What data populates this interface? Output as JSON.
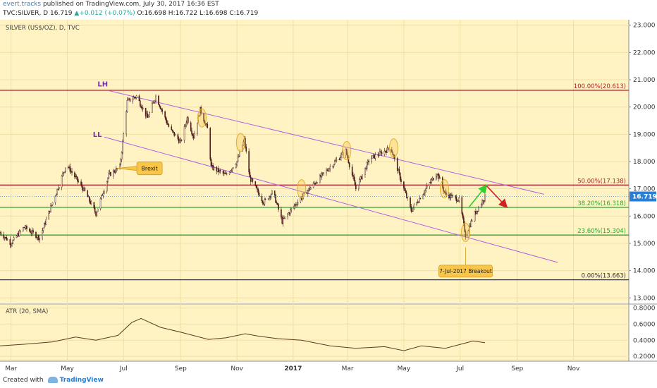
{
  "header": {
    "author": "evert.tracks",
    "published_text": "published on TradingView.com, July 30, 2017 16:36 EST",
    "symbol_line": "TVC:SILVER, D",
    "last": "16.719",
    "change": "+0.012 (+0.07%)",
    "ohlc": "O:16.698 H:16.722 L:16.698 C:16.719"
  },
  "footer": {
    "created_with": "Created with",
    "brand": "TradingView"
  },
  "colors": {
    "background": "#fff3c4",
    "up_candle": "#ffffff",
    "down_candle": "#5c1b1b",
    "green_line": "#2ea52e",
    "red_line": "#b5202a",
    "trend_line": "#b060e0",
    "label_box": "#f7c64b",
    "price_label": "#2a7fd4"
  },
  "chart_data": [
    {
      "type": "candlestick",
      "title": "SILVER (US$/OZ), D, TVC",
      "x_tick_labels": [
        "Mar",
        "May",
        "Jul",
        "Sep",
        "Nov",
        "2017",
        "Mar",
        "May",
        "Jul",
        "Sep",
        "Nov"
      ],
      "y_tick_labels": [
        "23.000",
        "22.000",
        "21.000",
        "20.000",
        "19.000",
        "18.000",
        "17.000",
        "16.000",
        "15.000",
        "14.000",
        "13.000"
      ],
      "ylim": [
        12.8,
        23.2
      ],
      "last_price_label": "16.719",
      "path_points": [
        [
          "2016-02-18",
          15.4
        ],
        [
          "2016-03-01",
          15.0
        ],
        [
          "2016-03-15",
          15.6
        ],
        [
          "2016-04-01",
          15.2
        ],
        [
          "2016-04-15",
          16.5
        ],
        [
          "2016-04-30",
          17.9
        ],
        [
          "2016-05-20",
          16.9
        ],
        [
          "2016-06-01",
          16.1
        ],
        [
          "2016-06-15",
          17.5
        ],
        [
          "2016-06-27",
          17.8
        ],
        [
          "2016-07-05",
          20.2
        ],
        [
          "2016-07-15",
          20.4
        ],
        [
          "2016-07-27",
          19.6
        ],
        [
          "2016-08-05",
          20.4
        ],
        [
          "2016-08-20",
          19.2
        ],
        [
          "2016-09-01",
          18.7
        ],
        [
          "2016-09-08",
          19.6
        ],
        [
          "2016-09-15",
          18.9
        ],
        [
          "2016-09-22",
          19.9
        ],
        [
          "2016-09-30",
          19.2
        ],
        [
          "2016-10-04",
          17.8
        ],
        [
          "2016-10-20",
          17.5
        ],
        [
          "2016-11-01",
          18.0
        ],
        [
          "2016-11-09",
          18.8
        ],
        [
          "2016-11-15",
          17.4
        ],
        [
          "2016-11-30",
          16.5
        ],
        [
          "2016-12-10",
          16.9
        ],
        [
          "2016-12-20",
          15.8
        ],
        [
          "2017-01-05",
          16.5
        ],
        [
          "2017-01-24",
          17.2
        ],
        [
          "2017-02-10",
          17.8
        ],
        [
          "2017-02-27",
          18.4
        ],
        [
          "2017-03-10",
          17.0
        ],
        [
          "2017-03-25",
          18.1
        ],
        [
          "2017-04-17",
          18.5
        ],
        [
          "2017-04-28",
          17.3
        ],
        [
          "2017-05-09",
          16.2
        ],
        [
          "2017-05-25",
          17.0
        ],
        [
          "2017-06-06",
          17.6
        ],
        [
          "2017-06-15",
          16.8
        ],
        [
          "2017-06-30",
          16.6
        ],
        [
          "2017-07-07",
          15.3
        ],
        [
          "2017-07-17",
          16.1
        ],
        [
          "2017-07-28",
          16.7
        ]
      ]
    },
    {
      "type": "line",
      "title": "ATR (20, SMA)",
      "y_tick_labels": [
        "0.8000",
        "0.6000",
        "0.4000",
        "0.2000"
      ],
      "ylim": [
        0.14,
        0.84
      ],
      "x": [
        "2016-02-18",
        "2016-03-15",
        "2016-04-15",
        "2016-05-10",
        "2016-06-01",
        "2016-06-25",
        "2016-07-10",
        "2016-07-20",
        "2016-08-10",
        "2016-09-01",
        "2016-10-01",
        "2016-10-20",
        "2016-11-10",
        "2016-11-25",
        "2016-12-15",
        "2017-01-10",
        "2017-02-10",
        "2017-03-10",
        "2017-04-10",
        "2017-05-01",
        "2017-05-20",
        "2017-06-15",
        "2017-07-05",
        "2017-07-15",
        "2017-07-28"
      ],
      "values": [
        0.33,
        0.35,
        0.38,
        0.44,
        0.4,
        0.46,
        0.62,
        0.67,
        0.56,
        0.5,
        0.41,
        0.43,
        0.48,
        0.45,
        0.42,
        0.4,
        0.33,
        0.3,
        0.32,
        0.27,
        0.33,
        0.3,
        0.36,
        0.39,
        0.37
      ]
    }
  ],
  "fib_levels": [
    {
      "label": "100.00%(20.613)",
      "value": 20.613,
      "color": "#b5202a"
    },
    {
      "label": "50.00%(17.138)",
      "value": 17.138,
      "color": "#b5202a"
    },
    {
      "label": "38.20%(16.318)",
      "value": 16.318,
      "color": "#2ea52e"
    },
    {
      "label": "23.60%(15.304)",
      "value": 15.304,
      "color": "#2ea52e"
    },
    {
      "label": "0.00%(13.663)",
      "value": 13.663,
      "color": "#333333"
    }
  ],
  "trendlines": [
    {
      "label": "LH",
      "from": [
        "2016-06-15",
        20.6
      ],
      "to": [
        "2017-09-30",
        16.8
      ]
    },
    {
      "label": "LL",
      "from": [
        "2016-06-10",
        18.9
      ],
      "to": [
        "2017-10-15",
        14.3
      ]
    }
  ],
  "annotations": [
    {
      "text": "Brexit",
      "date": "2016-06-24",
      "value": 17.75
    },
    {
      "text": "7-Jul-2017 Breakout",
      "date": "2017-07-07",
      "value": 14.85
    }
  ],
  "highlight_ellipses": [
    [
      "2016-09-24",
      19.6
    ],
    [
      "2016-11-05",
      18.7
    ],
    [
      "2017-01-10",
      17.0
    ],
    [
      "2017-02-28",
      18.4
    ],
    [
      "2017-04-20",
      18.5
    ],
    [
      "2017-06-14",
      17.0
    ],
    [
      "2017-07-07",
      15.4
    ]
  ],
  "projection": {
    "green": [
      [
        "2017-07-10",
        16.3
      ],
      [
        "2017-07-29",
        17.1
      ]
    ],
    "red": [
      [
        "2017-07-30",
        17.1
      ],
      [
        "2017-08-20",
        16.35
      ]
    ]
  }
}
